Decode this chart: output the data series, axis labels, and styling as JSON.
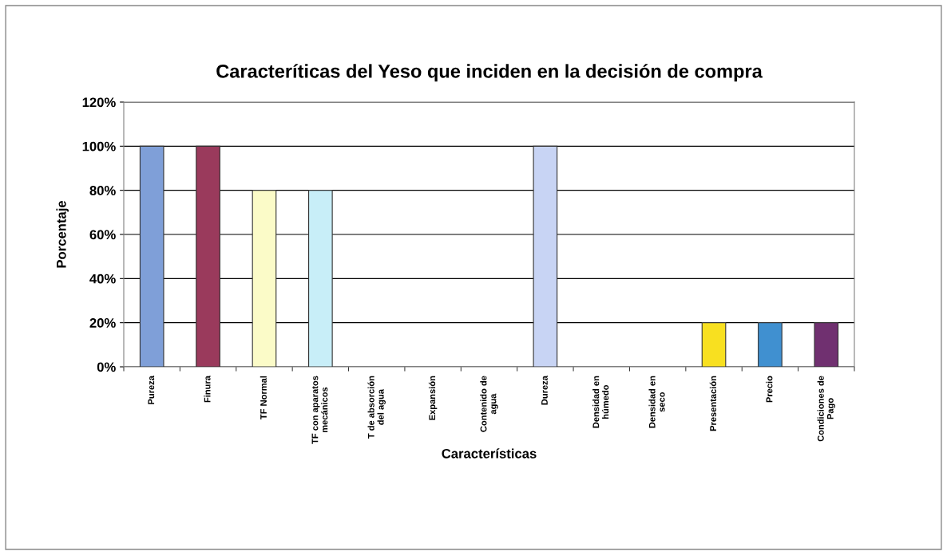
{
  "chart_data": {
    "type": "bar",
    "title": "Caracteríticas del Yeso que inciden en la decisión de compra",
    "xlabel": "Características",
    "ylabel": "Porcentaje",
    "categories": [
      "Pureza",
      "Finura",
      "TF Normal",
      "TF con aparatos\nmecánicos",
      "T de absorción\ndel agua",
      "Expansión",
      "Contenido de\nagua",
      "Dureza",
      "Densidad en\nhúmedo",
      "Densidad en\nseco",
      "Presentación",
      "Precio",
      "Condiciones de\nPago"
    ],
    "values": [
      100,
      100,
      80,
      80,
      0,
      0,
      0,
      100,
      0,
      0,
      20,
      20,
      20
    ],
    "colors": [
      "#7f9fd8",
      "#9a3a5c",
      "#fbfbc8",
      "#c8eef8",
      null,
      null,
      null,
      "#c8d4f4",
      null,
      null,
      "#f8e020",
      "#4090d0",
      "#703070"
    ],
    "ylim": [
      0,
      120
    ],
    "yticks": [
      {
        "value": 0,
        "label": "0%"
      },
      {
        "value": 20,
        "label": "20%"
      },
      {
        "value": 40,
        "label": "40%"
      },
      {
        "value": 60,
        "label": "60%"
      },
      {
        "value": 80,
        "label": "80%"
      },
      {
        "value": 100,
        "label": "100%"
      },
      {
        "value": 120,
        "label": "120%"
      }
    ],
    "grid": "y",
    "legend": false
  }
}
